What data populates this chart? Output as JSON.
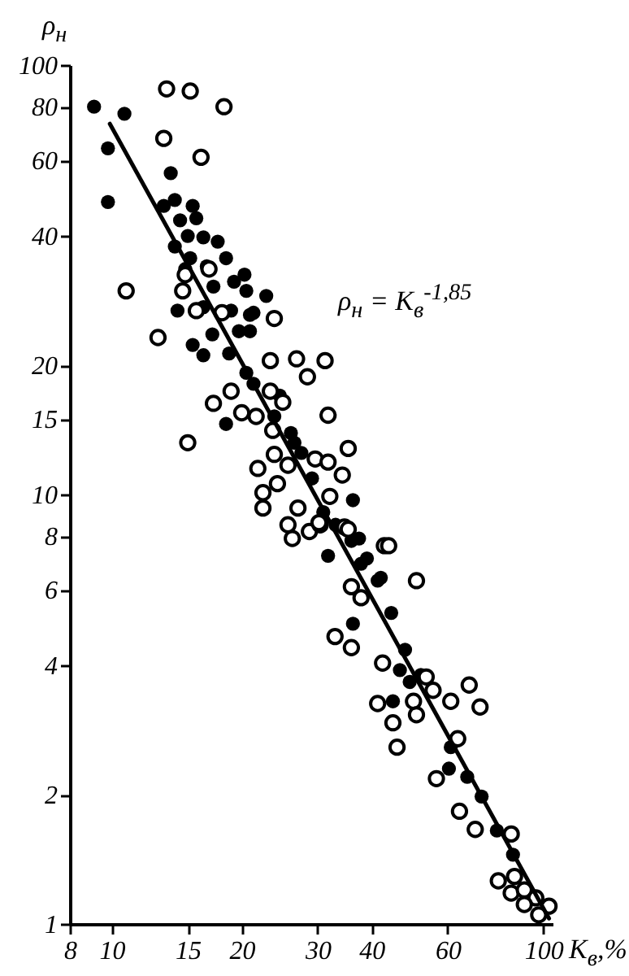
{
  "chart_data": {
    "type": "scatter",
    "xlabel": "K$_{в}$,%",
    "ylabel": "ρ$_{н}$",
    "annotations": [
      "ρ$_{н}$ = K$_{в}$$^{-1,85}$"
    ],
    "series": [
      {
        "color": "#000000",
        "x": [
          9.1,
          10.7,
          9.8,
          9.8,
          13.7,
          14.0,
          15.4,
          13.2,
          14.4,
          15.7,
          15,
          16.3,
          17.6,
          14,
          15.2,
          18.4,
          16.6,
          20.3,
          14.8,
          19.2,
          17.2,
          20.5,
          22.8,
          14.2,
          18.9,
          21.3,
          16.3,
          15.4,
          16.3,
          17.1,
          18.7,
          19.7,
          20.9,
          20.9,
          18.4,
          20.5,
          21.3,
          23.8,
          26,
          26.5,
          29.1,
          30.9,
          36.2,
          31.7,
          37.8,
          35.9,
          41.3,
          36.2,
          42,
          44.4,
          47.8,
          46.5,
          49,
          44.8,
          61,
          60.4,
          66.6,
          71.9,
          78,
          39,
          37.4,
          24.5,
          27.5,
          33,
          52,
          85
        ],
        "values": [
          80,
          77,
          64,
          48,
          56,
          48.5,
          47,
          47,
          43.5,
          44,
          40,
          39.7,
          38.8,
          37.8,
          35.5,
          35.5,
          34,
          32.5,
          33.5,
          31.3,
          30.5,
          29.8,
          29,
          26.8,
          26.8,
          26.5,
          27.3,
          22.3,
          21.1,
          23.6,
          21.3,
          24,
          24,
          26.2,
          14.6,
          19.2,
          18.1,
          15.2,
          13.9,
          13.2,
          10.9,
          9.1,
          9.7,
          7.2,
          6.9,
          7.8,
          6.3,
          5.0,
          6.4,
          5.3,
          4.35,
          3.9,
          3.66,
          3.3,
          2.58,
          2.3,
          2.2,
          1.98,
          1.65,
          7.1,
          7.9,
          17,
          12.5,
          8.5,
          3.8,
          1.45
        ]
      },
      {
        "color": "#000000",
        "x": [
          13.4,
          15.2,
          18.2,
          13.2,
          16.1,
          10.8,
          14.8,
          16.8,
          14.6,
          15.7,
          18,
          23.8,
          12.8,
          23.3,
          26.8,
          31.2,
          28.4,
          23.3,
          18.9,
          17.2,
          20,
          21.6,
          24.9,
          31.7,
          15,
          23.6,
          35.3,
          23.8,
          21.8,
          25.6,
          29.6,
          31.7,
          34.2,
          22.4,
          24.2,
          22.4,
          27,
          25.6,
          26.2,
          28.7,
          32,
          30.4,
          34.6,
          42.8,
          35.9,
          43.8,
          50.8,
          37.8,
          32.9,
          35.9,
          42.4,
          41.3,
          44.8,
          45.8,
          50,
          50.8,
          53.5,
          55.5,
          61,
          67.3,
          71.3,
          63.3,
          56.5,
          63.9,
          69.5,
          84.2,
          78.6,
          85.7,
          84.2,
          90.3,
          96,
          90.3,
          103,
          97.5,
          30.2,
          35.3
        ],
        "values": [
          88,
          87,
          80,
          67.5,
          61,
          29.8,
          32.5,
          33.5,
          29.8,
          26.8,
          26.5,
          25.7,
          23.2,
          20.5,
          20.7,
          20.5,
          18.8,
          17.4,
          17.4,
          16.3,
          15.5,
          15.2,
          16.4,
          15.3,
          13.2,
          14.1,
          12.8,
          12.4,
          11.5,
          11.7,
          12.1,
          11.9,
          11.1,
          10.1,
          10.6,
          9.3,
          9.3,
          8.5,
          7.9,
          8.2,
          9.9,
          8.5,
          8.4,
          7.6,
          6.1,
          7.6,
          6.3,
          5.75,
          4.67,
          4.4,
          4.05,
          3.26,
          2.94,
          2.58,
          3.3,
          3.07,
          3.76,
          3.5,
          3.3,
          3.6,
          3.2,
          2.7,
          2.18,
          1.83,
          1.66,
          1.62,
          1.26,
          1.29,
          1.18,
          1.2,
          1.15,
          1.11,
          1.1,
          1.05,
          8.6,
          8.3
        ]
      },
      {
        "type": "line",
        "marker": "none",
        "color": "#000000",
        "x": [
          9.9,
          103
        ],
        "values": [
          73,
          1.03
        ]
      }
    ],
    "log": "xy",
    "xlim": [
      8,
      105
    ],
    "ylim": [
      1,
      100
    ],
    "xticks": [
      8,
      10,
      15,
      20,
      30,
      40,
      60,
      100
    ],
    "yticks": [
      1,
      2,
      4,
      6,
      8,
      10,
      15,
      20,
      40,
      60,
      80,
      100
    ],
    "grid": false,
    "marker": "circle",
    "line_style": "solid"
  }
}
